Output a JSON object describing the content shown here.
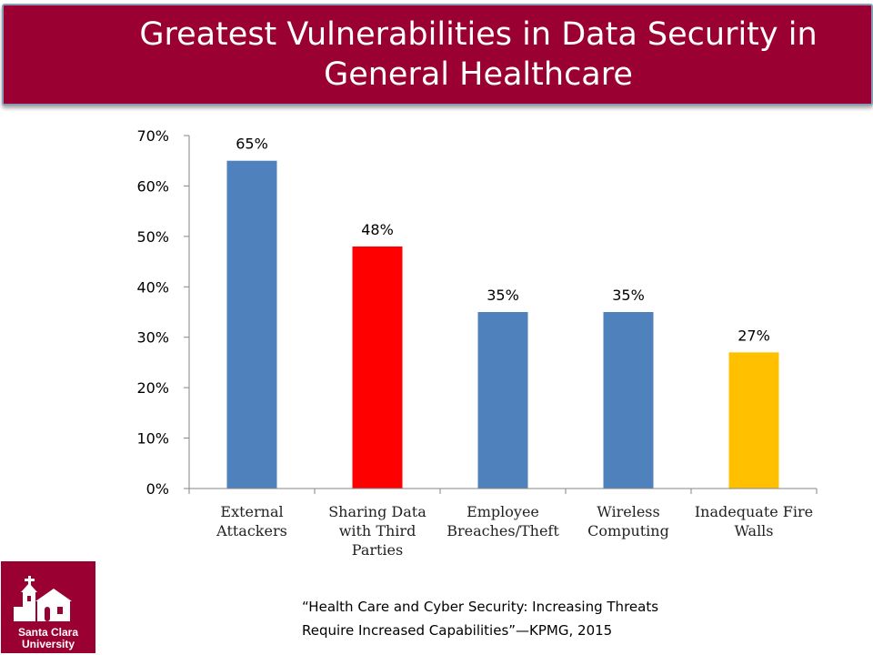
{
  "title": "Greatest Vulnerabilities in Data Security in General Healthcare",
  "chart_data": {
    "type": "bar",
    "categories": [
      "External Attackers",
      "Sharing Data with Third Parties",
      "Employee Breaches/Theft",
      "Wireless Computing",
      "Inadequate Fire Walls"
    ],
    "category_lines": [
      [
        "External",
        "Attackers"
      ],
      [
        "Sharing Data",
        "with Third",
        "Parties"
      ],
      [
        "Employee",
        "Breaches/Theft"
      ],
      [
        "Wireless",
        "Computing"
      ],
      [
        "Inadequate Fire",
        "Walls"
      ]
    ],
    "values": [
      65,
      48,
      35,
      35,
      27
    ],
    "data_labels": [
      "65%",
      "48%",
      "35%",
      "35%",
      "27%"
    ],
    "colors": [
      "#4f81bd",
      "#ff0000",
      "#4f81bd",
      "#4f81bd",
      "#ffc000"
    ],
    "ylim": [
      0,
      70
    ],
    "yticks": [
      0,
      10,
      20,
      30,
      40,
      50,
      60,
      70
    ],
    "ytick_labels": [
      "0%",
      "10%",
      "20%",
      "30%",
      "40%",
      "50%",
      "60%",
      "70%"
    ],
    "xlabel": "",
    "ylabel": "",
    "grid": false,
    "legend": "none"
  },
  "citation": {
    "line1": "“Health Care and Cyber Security: Increasing Threats",
    "line2": "Require Increased Capabilities”—KPMG, 2015"
  },
  "logo": {
    "name": "santa-clara-university-logo",
    "line1": "Santa Clara",
    "line2": "University"
  }
}
